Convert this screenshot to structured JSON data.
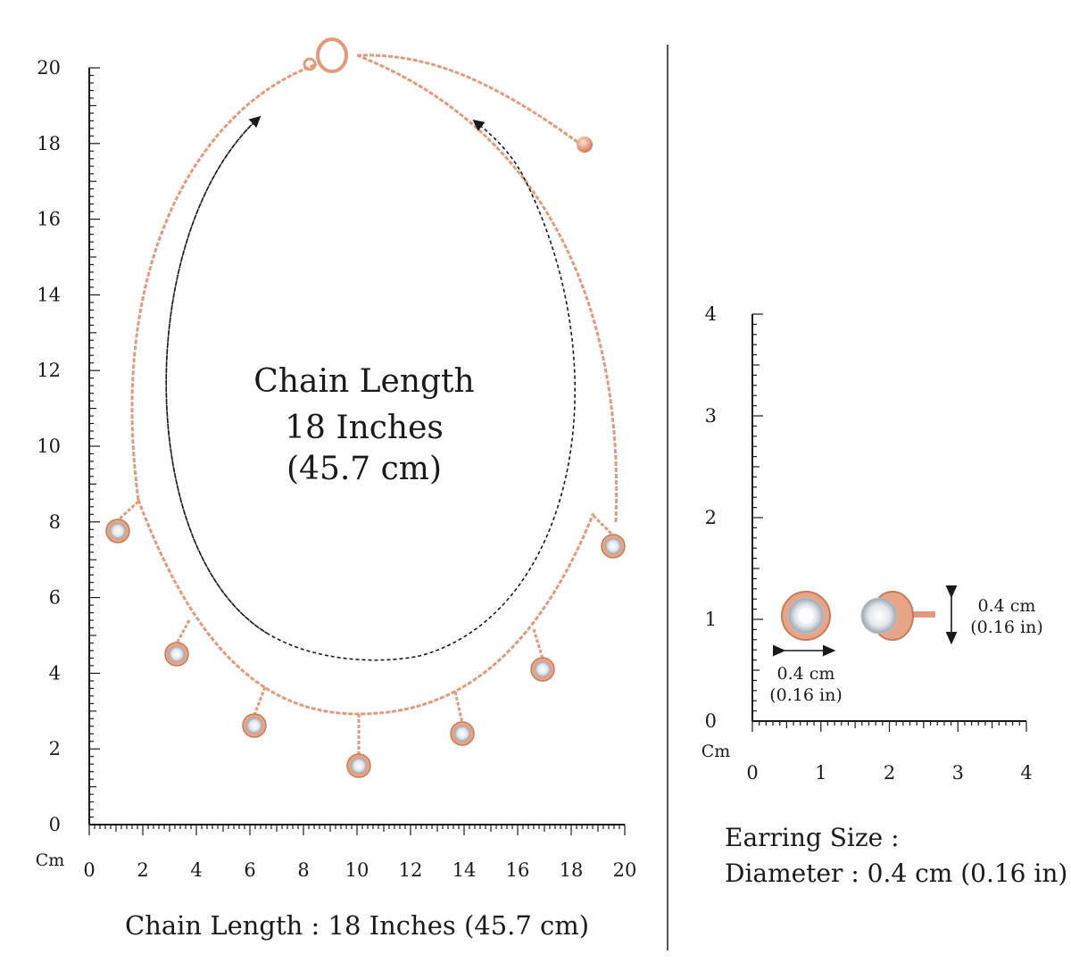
{
  "necklace": {
    "title_line1": "Chain Length",
    "title_line2": "18 Inches",
    "title_line3": "(45.7 cm)",
    "caption": "Chain Length : 18 Inches (45.7 cm)",
    "ruler_unit": "Cm",
    "y_ticks": [
      "0",
      "2",
      "4",
      "6",
      "8",
      "10",
      "12",
      "14",
      "16",
      "18",
      "20"
    ],
    "x_ticks": [
      "0",
      "2",
      "4",
      "6",
      "8",
      "10",
      "12",
      "14",
      "16",
      "18",
      "20"
    ],
    "metal_color": "#e8a080",
    "crystal_color": "#dfe4ea"
  },
  "earring": {
    "ruler_unit": "Cm",
    "y_ticks": [
      "0",
      "1",
      "2",
      "3",
      "4"
    ],
    "x_ticks": [
      "0",
      "1",
      "2",
      "3",
      "4"
    ],
    "width_label_1": "0.4 cm",
    "width_label_2": "(0.16 in)",
    "height_label_1": "0.4 cm",
    "height_label_2": "(0.16 in)",
    "size_line1": "Earring Size :",
    "size_line2": "Diameter : 0.4 cm (0.16 in)"
  },
  "colors": {
    "ink": "#1a1a1a",
    "rose_gold": "#e39a7a"
  }
}
